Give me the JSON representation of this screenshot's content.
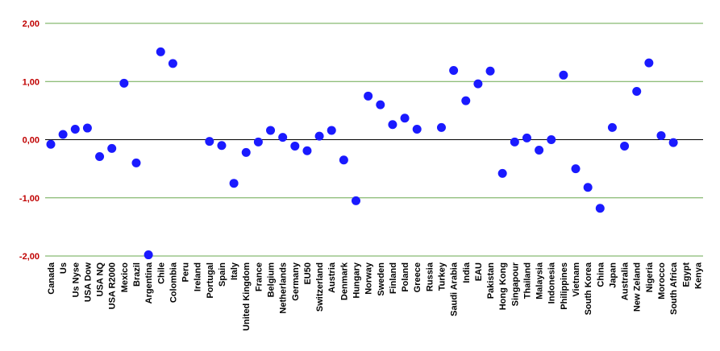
{
  "chart_data": {
    "type": "scatter",
    "title": "",
    "xlabel": "",
    "ylabel": "",
    "ylim": [
      -2,
      2
    ],
    "yticks": [
      "2,00",
      "1,00",
      "0,00",
      "-1,00",
      "-2,00"
    ],
    "grid": true,
    "legend": "none",
    "categories": [
      "Canada",
      "Us",
      "Us Nyse",
      "USA Dow",
      "USA NQ",
      "USA R2000",
      "Mexico",
      "Brazil",
      "Argentina",
      "Chile",
      "Colombia",
      "Peru",
      "Ireland",
      "Portugal",
      "Spain",
      "Italy",
      "United Kingdom",
      "France",
      "Belgium",
      "Netherlands",
      "Germany",
      "EU50",
      "Switzerland",
      "Austria",
      "Denmark",
      "Hungary",
      "Norway",
      "Sweden",
      "Finland",
      "Poland",
      "Greece",
      "Russia",
      "Turkey",
      "Saudi Arabia",
      "India",
      "EAU",
      "Pakistan",
      "Hong Kong",
      "Singapour",
      "Thailand",
      "Malaysia",
      "Indonesia",
      "Philippines",
      "Vietnam",
      "South Korea",
      "China",
      "Japan",
      "Australia",
      "New Zeland",
      "Nigeria",
      "Morocco",
      "South Africa",
      "Egypt",
      "Kenya"
    ],
    "values": [
      -0.08,
      0.09,
      0.18,
      0.2,
      -0.29,
      -0.15,
      0.97,
      -0.4,
      -1.98,
      1.51,
      1.31,
      null,
      null,
      -0.03,
      -0.1,
      -0.75,
      -0.22,
      -0.04,
      0.16,
      0.04,
      -0.11,
      -0.19,
      0.06,
      0.16,
      -0.35,
      -1.05,
      0.75,
      0.6,
      0.26,
      0.37,
      0.18,
      null,
      0.21,
      1.19,
      0.67,
      0.96,
      1.18,
      -0.58,
      -0.04,
      0.03,
      -0.18,
      0.0,
      1.11,
      -0.5,
      -0.82,
      -1.18,
      0.21,
      -0.11,
      0.83,
      1.32,
      0.07,
      -0.05,
      null,
      null
    ],
    "colors": {
      "marker": "#1a1aff",
      "grid": "#6aa84f",
      "zero": "#000000",
      "ytick": "#c00000"
    }
  }
}
